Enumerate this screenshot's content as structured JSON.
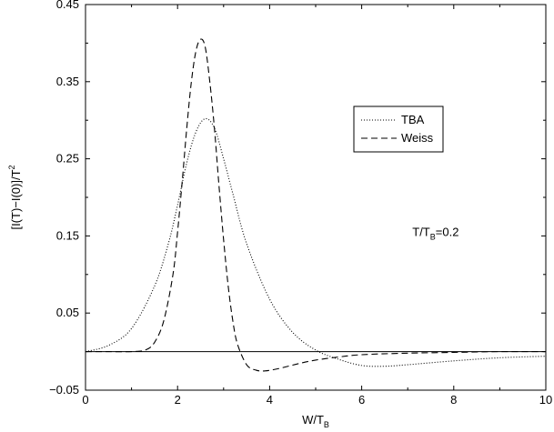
{
  "chart_data": {
    "type": "line",
    "title": "",
    "xlabel": "W/T",
    "xlabel_sub": "B",
    "ylabel": "[I(T)−I(0)]/T",
    "ylabel_sup": "2",
    "xlim": [
      0,
      10
    ],
    "ylim": [
      -0.05,
      0.45
    ],
    "xticks": [
      0,
      2,
      4,
      6,
      8,
      10
    ],
    "xtick_labels": [
      "0",
      "2",
      "4",
      "6",
      "8",
      "10"
    ],
    "yticks": [
      -0.05,
      0.05,
      0.15,
      0.25,
      0.35,
      0.45
    ],
    "ytick_labels": [
      "−0.05",
      "0.05",
      "0.15",
      "0.25",
      "0.35",
      "0.45"
    ],
    "grid": false,
    "legend_position": "upper-right",
    "annotation": {
      "text": "T/T",
      "sub": "B",
      "after": "=0.2",
      "x": 7.1,
      "y": 0.15
    },
    "reference_line": {
      "y": 0.0
    },
    "series": [
      {
        "name": "TBA",
        "style": "dotted",
        "x": [
          0,
          0.5,
          1.0,
          1.5,
          1.8,
          2.0,
          2.2,
          2.4,
          2.6,
          2.8,
          3.0,
          3.2,
          3.5,
          4.0,
          4.5,
          5.0,
          5.5,
          6.0,
          6.5,
          7.0,
          8.0,
          9.0,
          10.0
        ],
        "y": [
          0.0,
          0.008,
          0.03,
          0.085,
          0.14,
          0.19,
          0.245,
          0.285,
          0.302,
          0.29,
          0.25,
          0.205,
          0.14,
          0.068,
          0.025,
          0.002,
          -0.01,
          -0.018,
          -0.019,
          -0.017,
          -0.012,
          -0.008,
          -0.006
        ]
      },
      {
        "name": "Weiss",
        "style": "dashed",
        "x": [
          0,
          0.5,
          1.0,
          1.3,
          1.5,
          1.7,
          1.9,
          2.0,
          2.1,
          2.2,
          2.3,
          2.4,
          2.5,
          2.6,
          2.7,
          2.8,
          2.9,
          3.0,
          3.1,
          3.2,
          3.3,
          3.5,
          3.7,
          3.9,
          4.2,
          4.6,
          5.0,
          5.5,
          6.0,
          7.0,
          8.0,
          9.0,
          10.0
        ],
        "y": [
          0.0,
          0.0,
          0.0,
          0.002,
          0.012,
          0.04,
          0.1,
          0.155,
          0.22,
          0.29,
          0.35,
          0.39,
          0.405,
          0.395,
          0.35,
          0.29,
          0.215,
          0.145,
          0.085,
          0.04,
          0.01,
          -0.017,
          -0.024,
          -0.025,
          -0.022,
          -0.016,
          -0.011,
          -0.007,
          -0.004,
          -0.002,
          -0.001,
          0.0,
          0.0
        ]
      }
    ]
  }
}
